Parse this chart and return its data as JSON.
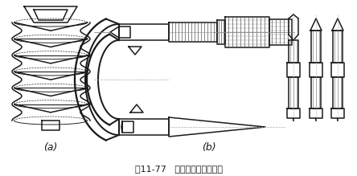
{
  "title": "图11-77   螺纹百分尺测量中径",
  "label_a": "(a)",
  "label_b": "(b)",
  "bg_color": "#ffffff",
  "lc": "#1a1a1a",
  "lw": 1.1,
  "fig_w": 4.44,
  "fig_h": 2.19,
  "dpi": 100
}
